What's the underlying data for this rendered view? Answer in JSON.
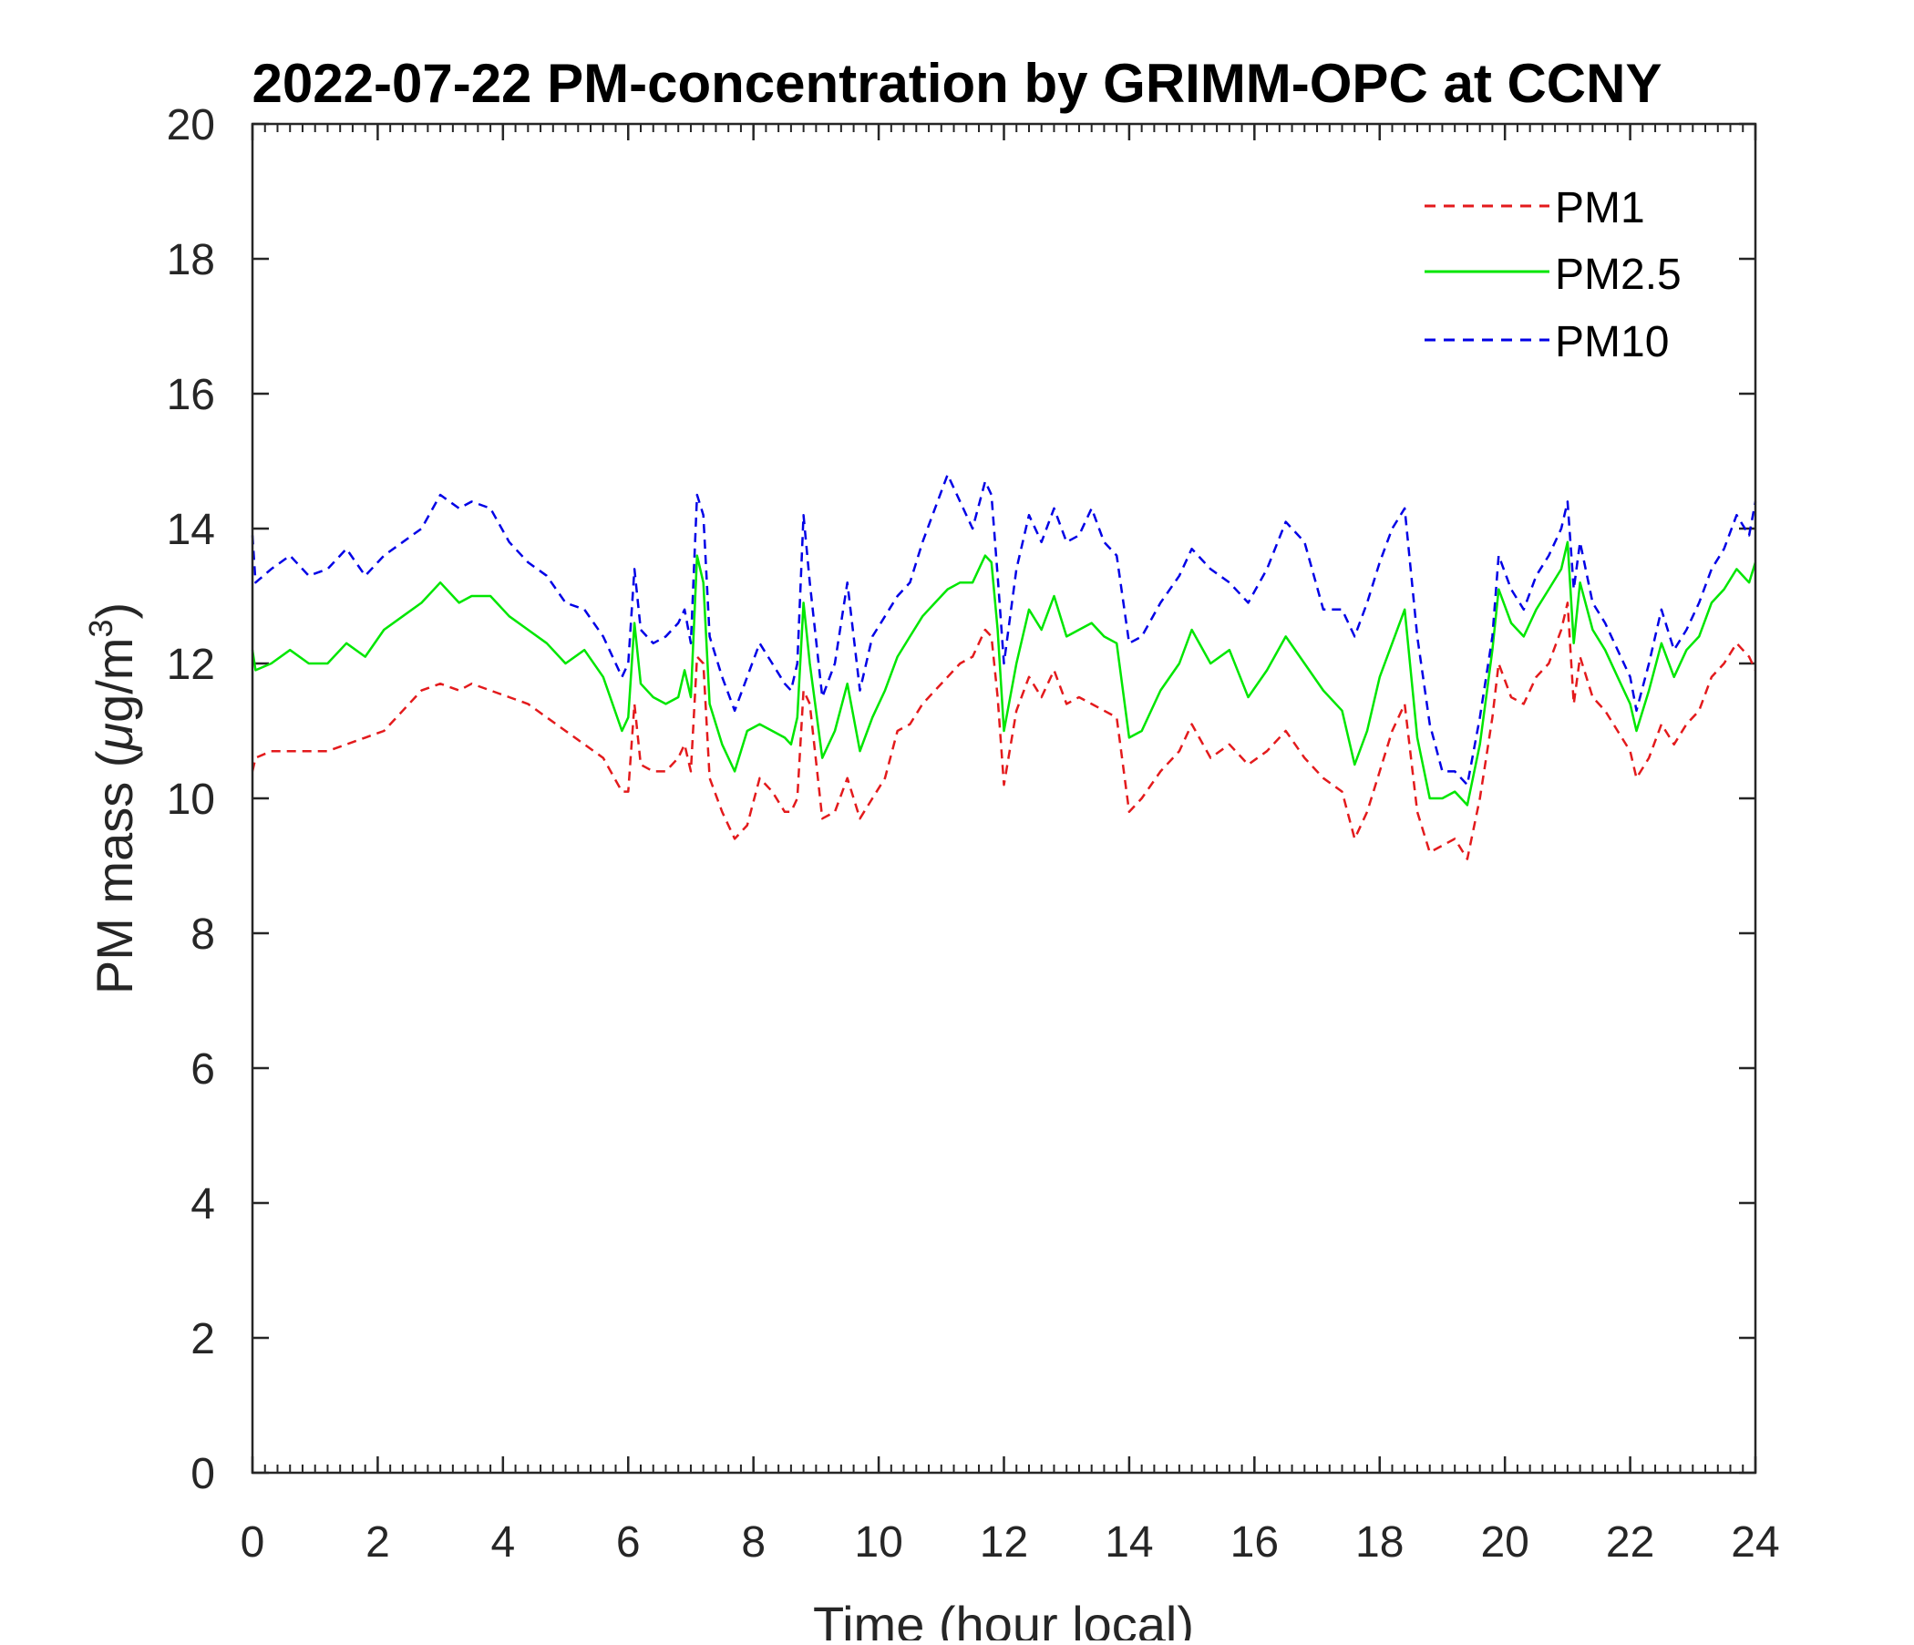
{
  "chart_data": {
    "type": "line",
    "title": "2022-07-22 PM-concentration by GRIMM-OPC at CCNY",
    "xlabel": "Time (hour local)",
    "ylabel": {
      "prefix": "PM mass (",
      "mu": "μ",
      "unit": "g/m",
      "sup": "3",
      "suffix": ")"
    },
    "xlim": [
      0,
      24
    ],
    "ylim": [
      0,
      20
    ],
    "xticks": [
      0,
      2,
      4,
      6,
      8,
      10,
      12,
      14,
      16,
      18,
      20,
      22,
      24
    ],
    "yticks": [
      0,
      2,
      4,
      6,
      8,
      10,
      12,
      14,
      16,
      18,
      20
    ],
    "x_minor_step": 0.2,
    "legend_position": "top-right",
    "series": [
      {
        "name": "PM1",
        "color": "#e31a1c",
        "style": "dashed",
        "x": [
          0,
          0.05,
          0.3,
          0.6,
          0.9,
          1.2,
          1.5,
          1.8,
          2.1,
          2.4,
          2.7,
          3.0,
          3.3,
          3.5,
          3.8,
          4.1,
          4.4,
          4.7,
          5.0,
          5.3,
          5.6,
          5.9,
          6.0,
          6.1,
          6.2,
          6.4,
          6.6,
          6.8,
          6.9,
          7.0,
          7.1,
          7.2,
          7.3,
          7.5,
          7.7,
          7.9,
          8.1,
          8.3,
          8.5,
          8.6,
          8.7,
          8.8,
          8.9,
          9.1,
          9.3,
          9.5,
          9.7,
          9.9,
          10.1,
          10.3,
          10.5,
          10.7,
          10.9,
          11.1,
          11.3,
          11.5,
          11.7,
          11.8,
          11.9,
          12.0,
          12.2,
          12.4,
          12.6,
          12.8,
          13.0,
          13.2,
          13.4,
          13.6,
          13.8,
          14.0,
          14.2,
          14.5,
          14.8,
          15.0,
          15.3,
          15.6,
          15.9,
          16.2,
          16.5,
          16.8,
          17.1,
          17.4,
          17.6,
          17.8,
          18.0,
          18.2,
          18.4,
          18.6,
          18.8,
          19.0,
          19.2,
          19.4,
          19.6,
          19.7,
          19.8,
          19.9,
          20.1,
          20.3,
          20.5,
          20.7,
          20.9,
          21.0,
          21.1,
          21.2,
          21.4,
          21.6,
          21.8,
          22.0,
          22.1,
          22.3,
          22.5,
          22.7,
          22.9,
          23.1,
          23.3,
          23.5,
          23.7,
          23.9,
          24.0
        ],
        "values": [
          10.4,
          10.6,
          10.7,
          10.7,
          10.7,
          10.7,
          10.8,
          10.9,
          11.0,
          11.3,
          11.6,
          11.7,
          11.6,
          11.7,
          11.6,
          11.5,
          11.4,
          11.2,
          11.0,
          10.8,
          10.6,
          10.1,
          10.1,
          11.4,
          10.5,
          10.4,
          10.4,
          10.6,
          10.8,
          10.4,
          12.1,
          12.0,
          10.3,
          9.8,
          9.4,
          9.6,
          10.3,
          10.1,
          9.8,
          9.8,
          10.0,
          11.6,
          11.4,
          9.7,
          9.8,
          10.3,
          9.7,
          10.0,
          10.3,
          11.0,
          11.1,
          11.4,
          11.6,
          11.8,
          12.0,
          12.1,
          12.5,
          12.4,
          11.5,
          10.2,
          11.3,
          11.8,
          11.5,
          11.9,
          11.4,
          11.5,
          11.4,
          11.3,
          11.2,
          9.8,
          10.0,
          10.4,
          10.7,
          11.1,
          10.6,
          10.8,
          10.5,
          10.7,
          11.0,
          10.6,
          10.3,
          10.1,
          9.4,
          9.8,
          10.4,
          11.0,
          11.4,
          9.8,
          9.2,
          9.3,
          9.4,
          9.1,
          10.0,
          10.6,
          11.2,
          12.0,
          11.5,
          11.4,
          11.8,
          12.0,
          12.5,
          12.9,
          11.4,
          12.1,
          11.5,
          11.3,
          11.0,
          10.7,
          10.3,
          10.6,
          11.1,
          10.8,
          11.1,
          11.3,
          11.8,
          12.0,
          12.3,
          12.1,
          11.9
        ]
      },
      {
        "name": "PM2.5",
        "color": "#00e600",
        "style": "solid",
        "x": [
          0,
          0.05,
          0.3,
          0.6,
          0.9,
          1.2,
          1.5,
          1.8,
          2.1,
          2.4,
          2.7,
          3.0,
          3.3,
          3.5,
          3.8,
          4.1,
          4.4,
          4.7,
          5.0,
          5.3,
          5.6,
          5.9,
          6.0,
          6.1,
          6.2,
          6.4,
          6.6,
          6.8,
          6.9,
          7.0,
          7.1,
          7.2,
          7.3,
          7.5,
          7.7,
          7.9,
          8.1,
          8.3,
          8.5,
          8.6,
          8.7,
          8.8,
          8.9,
          9.1,
          9.3,
          9.5,
          9.7,
          9.9,
          10.1,
          10.3,
          10.5,
          10.7,
          10.9,
          11.1,
          11.3,
          11.5,
          11.7,
          11.8,
          11.9,
          12.0,
          12.2,
          12.4,
          12.6,
          12.8,
          13.0,
          13.2,
          13.4,
          13.6,
          13.8,
          14.0,
          14.2,
          14.5,
          14.8,
          15.0,
          15.3,
          15.6,
          15.9,
          16.2,
          16.5,
          16.8,
          17.1,
          17.4,
          17.6,
          17.8,
          18.0,
          18.2,
          18.4,
          18.6,
          18.8,
          19.0,
          19.2,
          19.4,
          19.6,
          19.7,
          19.8,
          19.9,
          20.1,
          20.3,
          20.5,
          20.7,
          20.9,
          21.0,
          21.1,
          21.2,
          21.4,
          21.6,
          21.8,
          22.0,
          22.1,
          22.3,
          22.5,
          22.7,
          22.9,
          23.1,
          23.3,
          23.5,
          23.7,
          23.9,
          24.0
        ],
        "values": [
          12.2,
          11.9,
          12.0,
          12.2,
          12.0,
          12.0,
          12.3,
          12.1,
          12.5,
          12.7,
          12.9,
          13.2,
          12.9,
          13.0,
          13.0,
          12.7,
          12.5,
          12.3,
          12.0,
          12.2,
          11.8,
          11.0,
          11.2,
          12.6,
          11.7,
          11.5,
          11.4,
          11.5,
          11.9,
          11.5,
          13.6,
          13.2,
          11.4,
          10.8,
          10.4,
          11.0,
          11.1,
          11.0,
          10.9,
          10.8,
          11.2,
          12.9,
          12.0,
          10.6,
          11.0,
          11.7,
          10.7,
          11.2,
          11.6,
          12.1,
          12.4,
          12.7,
          12.9,
          13.1,
          13.2,
          13.2,
          13.6,
          13.5,
          12.5,
          11.0,
          12.0,
          12.8,
          12.5,
          13.0,
          12.4,
          12.5,
          12.6,
          12.4,
          12.3,
          10.9,
          11.0,
          11.6,
          12.0,
          12.5,
          12.0,
          12.2,
          11.5,
          11.9,
          12.4,
          12.0,
          11.6,
          11.3,
          10.5,
          11.0,
          11.8,
          12.3,
          12.8,
          10.9,
          10.0,
          10.0,
          10.1,
          9.9,
          10.8,
          11.5,
          12.2,
          13.1,
          12.6,
          12.4,
          12.8,
          13.1,
          13.4,
          13.8,
          12.3,
          13.2,
          12.5,
          12.2,
          11.8,
          11.4,
          11.0,
          11.6,
          12.3,
          11.8,
          12.2,
          12.4,
          12.9,
          13.1,
          13.4,
          13.2,
          13.5
        ]
      },
      {
        "name": "PM10",
        "color": "#0000e6",
        "style": "dashed",
        "x": [
          0,
          0.05,
          0.3,
          0.6,
          0.9,
          1.2,
          1.5,
          1.8,
          2.1,
          2.4,
          2.7,
          3.0,
          3.3,
          3.5,
          3.8,
          4.1,
          4.4,
          4.7,
          5.0,
          5.3,
          5.6,
          5.9,
          6.0,
          6.1,
          6.2,
          6.4,
          6.6,
          6.8,
          6.9,
          7.0,
          7.1,
          7.2,
          7.3,
          7.5,
          7.7,
          7.9,
          8.1,
          8.3,
          8.5,
          8.6,
          8.7,
          8.8,
          8.9,
          9.1,
          9.3,
          9.5,
          9.7,
          9.9,
          10.1,
          10.3,
          10.5,
          10.7,
          10.9,
          11.1,
          11.3,
          11.5,
          11.7,
          11.8,
          11.9,
          12.0,
          12.2,
          12.4,
          12.6,
          12.8,
          13.0,
          13.2,
          13.4,
          13.6,
          13.8,
          14.0,
          14.2,
          14.5,
          14.8,
          15.0,
          15.3,
          15.6,
          15.9,
          16.2,
          16.5,
          16.8,
          17.1,
          17.4,
          17.6,
          17.8,
          18.0,
          18.2,
          18.4,
          18.6,
          18.8,
          19.0,
          19.2,
          19.4,
          19.6,
          19.7,
          19.8,
          19.9,
          20.1,
          20.3,
          20.5,
          20.7,
          20.9,
          21.0,
          21.1,
          21.2,
          21.4,
          21.6,
          21.8,
          22.0,
          22.1,
          22.3,
          22.5,
          22.7,
          22.9,
          23.1,
          23.3,
          23.5,
          23.7,
          23.9,
          24.0
        ],
        "values": [
          13.9,
          13.2,
          13.4,
          13.6,
          13.3,
          13.4,
          13.7,
          13.3,
          13.6,
          13.8,
          14.0,
          14.5,
          14.3,
          14.4,
          14.3,
          13.8,
          13.5,
          13.3,
          12.9,
          12.8,
          12.4,
          11.8,
          12.0,
          13.4,
          12.5,
          12.3,
          12.4,
          12.6,
          12.8,
          12.3,
          14.5,
          14.2,
          12.4,
          11.8,
          11.3,
          11.8,
          12.3,
          12.0,
          11.7,
          11.6,
          12.0,
          14.2,
          13.2,
          11.5,
          12.0,
          13.2,
          11.6,
          12.4,
          12.7,
          13.0,
          13.2,
          13.8,
          14.3,
          14.8,
          14.4,
          14.0,
          14.7,
          14.5,
          13.3,
          12.0,
          13.4,
          14.2,
          13.8,
          14.3,
          13.8,
          13.9,
          14.3,
          13.8,
          13.6,
          12.3,
          12.4,
          12.9,
          13.3,
          13.7,
          13.4,
          13.2,
          12.9,
          13.4,
          14.1,
          13.8,
          12.8,
          12.8,
          12.4,
          12.9,
          13.5,
          14.0,
          14.3,
          12.4,
          11.1,
          10.4,
          10.4,
          10.2,
          11.2,
          11.8,
          12.4,
          13.6,
          13.1,
          12.8,
          13.3,
          13.6,
          14.0,
          14.4,
          13.1,
          13.8,
          12.9,
          12.6,
          12.2,
          11.8,
          11.3,
          12.0,
          12.8,
          12.2,
          12.5,
          12.9,
          13.4,
          13.7,
          14.2,
          13.9,
          14.4
        ]
      }
    ]
  }
}
